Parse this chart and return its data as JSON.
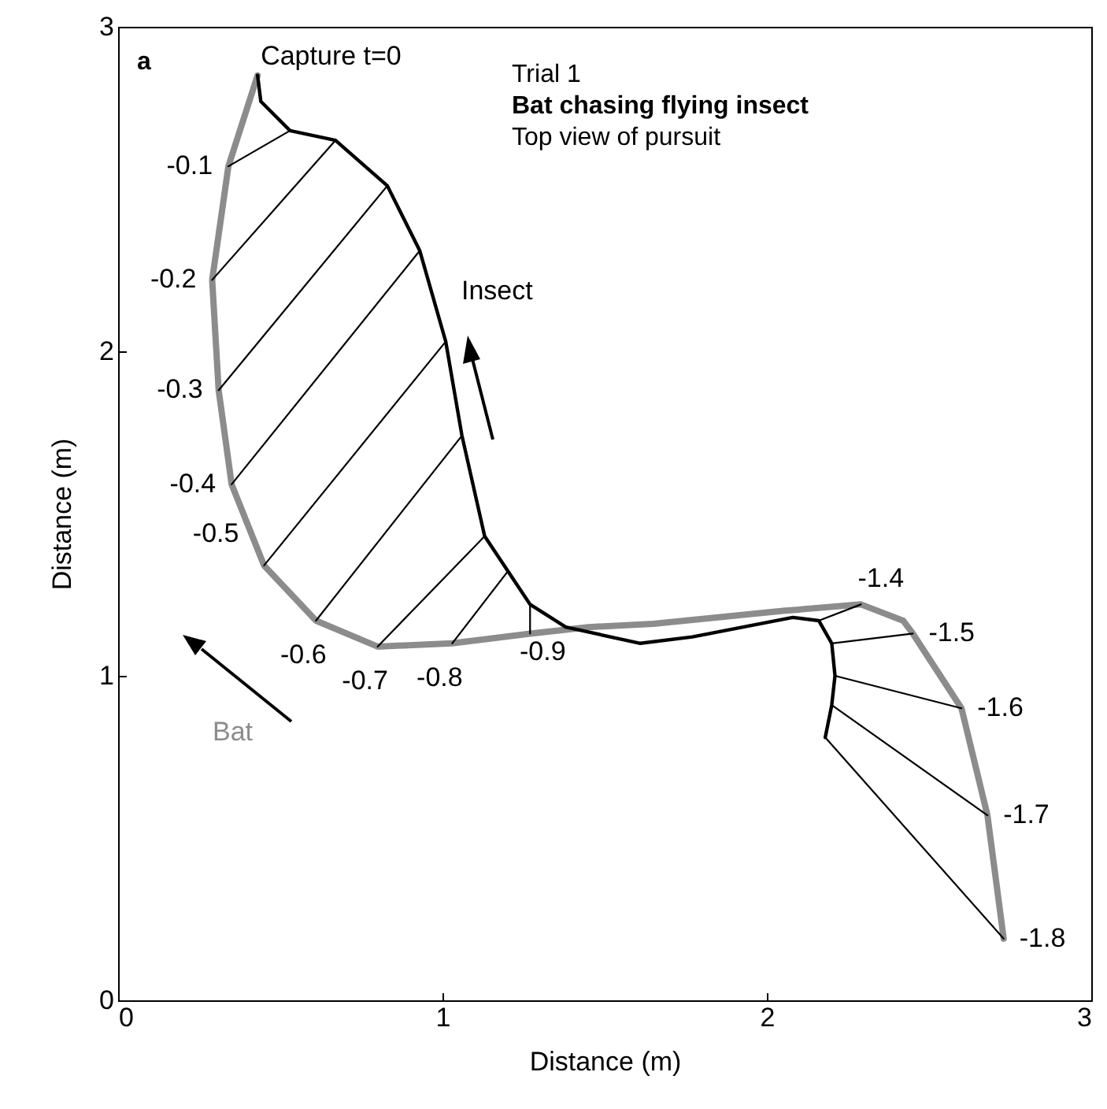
{
  "chart_data": {
    "type": "line",
    "xlabel": "Distance (m)",
    "ylabel": "Distance (m)",
    "xlim": [
      0,
      3
    ],
    "ylim": [
      0,
      3
    ],
    "xticks": [
      0,
      1,
      2,
      3
    ],
    "yticks": [
      0,
      1,
      2,
      3
    ],
    "grid": false,
    "marker": "none",
    "line_style": "solid",
    "annotations": [
      "a",
      "Trial 1",
      "Bat chasing flying insect",
      "Top view of pursuit",
      {
        "text": "Capture t=0",
        "x": 0.43,
        "y": 2.85
      },
      {
        "text": "-0.1",
        "x": 0.34,
        "y": 2.57
      },
      {
        "text": "-0.2",
        "x": 0.29,
        "y": 2.22
      },
      {
        "text": "-0.3",
        "x": 0.31,
        "y": 1.88
      },
      {
        "text": "-0.4",
        "x": 0.35,
        "y": 1.59
      },
      {
        "text": "-0.5",
        "x": 0.45,
        "y": 1.34
      },
      {
        "text": "-0.6",
        "x": 0.61,
        "y": 1.17
      },
      {
        "text": "-0.7",
        "x": 0.8,
        "y": 1.09
      },
      {
        "text": "-0.8",
        "x": 1.03,
        "y": 1.1
      },
      {
        "text": "-0.9",
        "x": 1.27,
        "y": 1.13
      },
      {
        "text": "-1.4",
        "x": 2.29,
        "y": 1.22
      },
      {
        "text": "-1.5",
        "x": 2.45,
        "y": 1.13
      },
      {
        "text": "-1.6",
        "x": 2.6,
        "y": 0.9
      },
      {
        "text": "-1.7",
        "x": 2.68,
        "y": 0.57
      },
      {
        "text": "-1.8",
        "x": 2.73,
        "y": 0.19
      }
    ],
    "series": [
      {
        "name": "Bat",
        "color": "#8c8c8c",
        "x": [
          0.43,
          0.34,
          0.29,
          0.31,
          0.35,
          0.45,
          0.61,
          0.8,
          1.03,
          1.27,
          1.45,
          1.65,
          1.85,
          2.05,
          2.29,
          2.42,
          2.45,
          2.6,
          2.68,
          2.73
        ],
        "values": [
          2.85,
          2.57,
          2.22,
          1.88,
          1.59,
          1.34,
          1.17,
          1.09,
          1.1,
          1.13,
          1.15,
          1.16,
          1.18,
          1.2,
          1.22,
          1.17,
          1.13,
          0.9,
          0.57,
          0.19
        ]
      },
      {
        "name": "Insect",
        "color": "#000000",
        "x": [
          0.43,
          0.44,
          0.53,
          0.67,
          0.83,
          0.93,
          1.01,
          1.06,
          1.13,
          1.27,
          1.38,
          1.61,
          1.77,
          2.08,
          2.16,
          2.2,
          2.21,
          2.2,
          2.18
        ],
        "values": [
          2.85,
          2.77,
          2.68,
          2.65,
          2.51,
          2.31,
          2.03,
          1.74,
          1.43,
          1.22,
          1.15,
          1.1,
          1.12,
          1.18,
          1.17,
          1.1,
          1.0,
          0.91,
          0.81
        ]
      },
      {
        "color": "#000000",
        "x": [
          0.34,
          0.53
        ],
        "values": [
          2.57,
          2.68
        ]
      },
      {
        "color": "#000000",
        "x": [
          0.29,
          0.67
        ],
        "values": [
          2.22,
          2.65
        ]
      },
      {
        "color": "#000000",
        "x": [
          0.31,
          0.83
        ],
        "values": [
          1.88,
          2.51
        ]
      },
      {
        "color": "#000000",
        "x": [
          0.35,
          0.93
        ],
        "values": [
          1.59,
          2.31
        ]
      },
      {
        "color": "#000000",
        "x": [
          0.45,
          1.01
        ],
        "values": [
          1.34,
          2.03
        ]
      },
      {
        "color": "#000000",
        "x": [
          0.61,
          1.06
        ],
        "values": [
          1.17,
          1.74
        ]
      },
      {
        "color": "#000000",
        "x": [
          0.8,
          1.13
        ],
        "values": [
          1.09,
          1.43
        ]
      },
      {
        "color": "#000000",
        "x": [
          1.03,
          1.2
        ],
        "values": [
          1.1,
          1.32
        ]
      },
      {
        "color": "#000000",
        "x": [
          1.27,
          1.27
        ],
        "values": [
          1.13,
          1.22
        ]
      },
      {
        "color": "#000000",
        "x": [
          2.29,
          2.16
        ],
        "values": [
          1.22,
          1.17
        ]
      },
      {
        "color": "#000000",
        "x": [
          2.45,
          2.2
        ],
        "values": [
          1.13,
          1.1
        ]
      },
      {
        "color": "#000000",
        "x": [
          2.6,
          2.21
        ],
        "values": [
          0.9,
          1.0
        ]
      },
      {
        "color": "#000000",
        "x": [
          2.68,
          2.2
        ],
        "values": [
          0.57,
          0.91
        ]
      },
      {
        "color": "#000000",
        "x": [
          2.73,
          2.18
        ],
        "values": [
          0.19,
          0.81
        ]
      }
    ]
  }
}
